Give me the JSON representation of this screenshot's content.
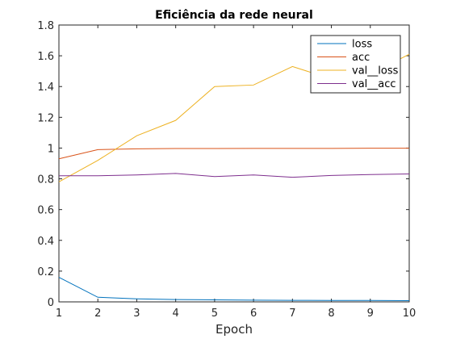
{
  "chart_data": {
    "type": "line",
    "title": "Eficiência da rede neural",
    "xlabel": "Epoch",
    "ylabel": "",
    "x": [
      1,
      2,
      3,
      4,
      5,
      6,
      7,
      8,
      9,
      10
    ],
    "xlim": [
      1,
      10
    ],
    "ylim": [
      0,
      1.8
    ],
    "xticks": [
      1,
      2,
      3,
      4,
      5,
      6,
      7,
      8,
      9,
      10
    ],
    "yticks": [
      0,
      0.2,
      0.4,
      0.6,
      0.8,
      1,
      1.2,
      1.4,
      1.6,
      1.8
    ],
    "ytick_labels": [
      "0",
      "0.2",
      "0.4",
      "0.6",
      "0.8",
      "1",
      "1.2",
      "1.4",
      "1.6",
      "1.8"
    ],
    "grid": false,
    "legend_position": "top-right",
    "series": [
      {
        "name": "loss",
        "color": "#0072BD",
        "values": [
          0.16,
          0.03,
          0.02,
          0.015,
          0.013,
          0.011,
          0.01,
          0.009,
          0.009,
          0.008
        ]
      },
      {
        "name": "acc",
        "color": "#D95319",
        "values": [
          0.93,
          0.99,
          0.995,
          0.997,
          0.997,
          0.998,
          0.998,
          0.998,
          0.999,
          0.999
        ]
      },
      {
        "name": "val__loss",
        "color": "#EDB120",
        "values": [
          0.78,
          0.92,
          1.08,
          1.18,
          1.4,
          1.41,
          1.53,
          1.45,
          1.48,
          1.61
        ]
      },
      {
        "name": "val__acc",
        "color": "#7E2F8E",
        "values": [
          0.82,
          0.82,
          0.825,
          0.835,
          0.815,
          0.825,
          0.81,
          0.822,
          0.828,
          0.832
        ]
      }
    ]
  }
}
